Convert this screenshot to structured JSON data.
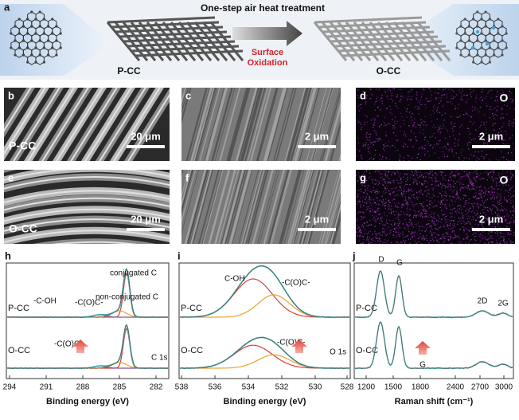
{
  "panel_a": {
    "label": "a",
    "title": "One-step air heat treatment",
    "left": "P-CC",
    "arrow": [
      "Surface",
      "Oxidation"
    ],
    "right": "O-CC"
  },
  "sem": [
    {
      "label": "b",
      "sample": "P-CC",
      "scale": "20 μm"
    },
    {
      "label": "c",
      "scale": "2 μm"
    },
    {
      "label": "d",
      "element": "O",
      "scale": "2 μm"
    },
    {
      "label": "e",
      "sample": "O-CC",
      "scale": "20 μm"
    },
    {
      "label": "f",
      "scale": "2 μm"
    },
    {
      "label": "g",
      "element": "O",
      "scale": "2 μm"
    }
  ],
  "xps_c": {
    "label": "h",
    "annotations": [
      "conjugated C",
      "-C-OH",
      "-C(O)C-",
      "non-conjugated C",
      "-C(O)C-",
      "C 1s"
    ],
    "top": "P-CC",
    "bottom": "O-CC",
    "ticks": [
      294,
      291,
      288,
      285,
      282
    ],
    "xlabel": "Binding energy (eV)"
  },
  "xps_o": {
    "label": "i",
    "annotations": [
      "C-OH",
      "-C(O)C-",
      "-C(O)C-",
      "O 1s"
    ],
    "top": "P-CC",
    "bottom": "O-CC",
    "ticks": [
      538,
      536,
      534,
      532,
      530,
      528
    ],
    "xlabel": "Binding energy (eV)"
  },
  "raman": {
    "label": "j",
    "annotations": [
      "D",
      "G",
      "2D",
      "2G",
      "G"
    ],
    "top": "P-CC",
    "bottom": "O-CC",
    "ticks": [
      1200,
      1500,
      1800,
      2400,
      2700,
      3000
    ],
    "xlabel": "Raman shift (cm⁻¹)"
  }
}
